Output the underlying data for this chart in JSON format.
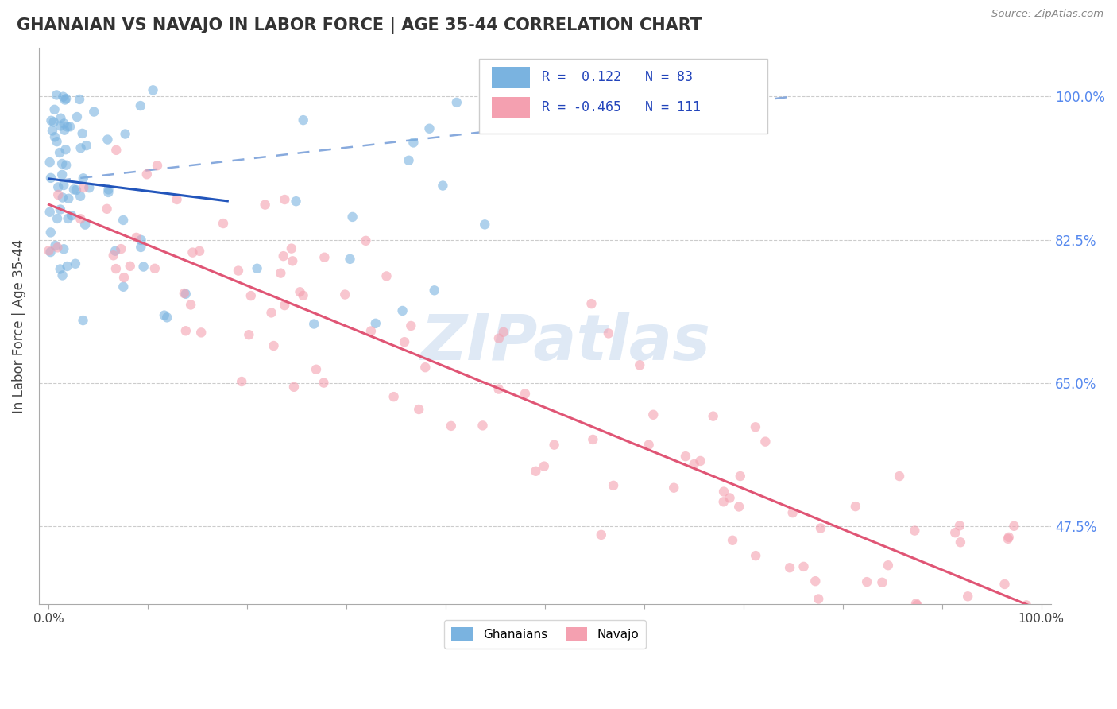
{
  "title": "GHANAIAN VS NAVAJO IN LABOR FORCE | AGE 35-44 CORRELATION CHART",
  "source_text": "Source: ZipAtlas.com",
  "ylabel": "In Labor Force | Age 35-44",
  "ghanaian_color": "#7ab3e0",
  "navajo_color": "#f4a0b0",
  "trend_ghanaian_solid_color": "#2255bb",
  "trend_ghanaian_dashed_color": "#88aadd",
  "trend_navajo_color": "#e05575",
  "legend_R_ghanaian": "0.122",
  "legend_N_ghanaian": "83",
  "legend_R_navajo": "-0.465",
  "legend_N_navajo": "111",
  "watermark": "ZIPatlas",
  "ytick_positions": [
    0.475,
    0.65,
    0.825,
    1.0
  ],
  "ytick_labels": [
    "47.5%",
    "65.0%",
    "82.5%",
    "100.0%"
  ],
  "ymin": 0.38,
  "ymax": 1.06,
  "xmin": -0.01,
  "xmax": 1.01
}
